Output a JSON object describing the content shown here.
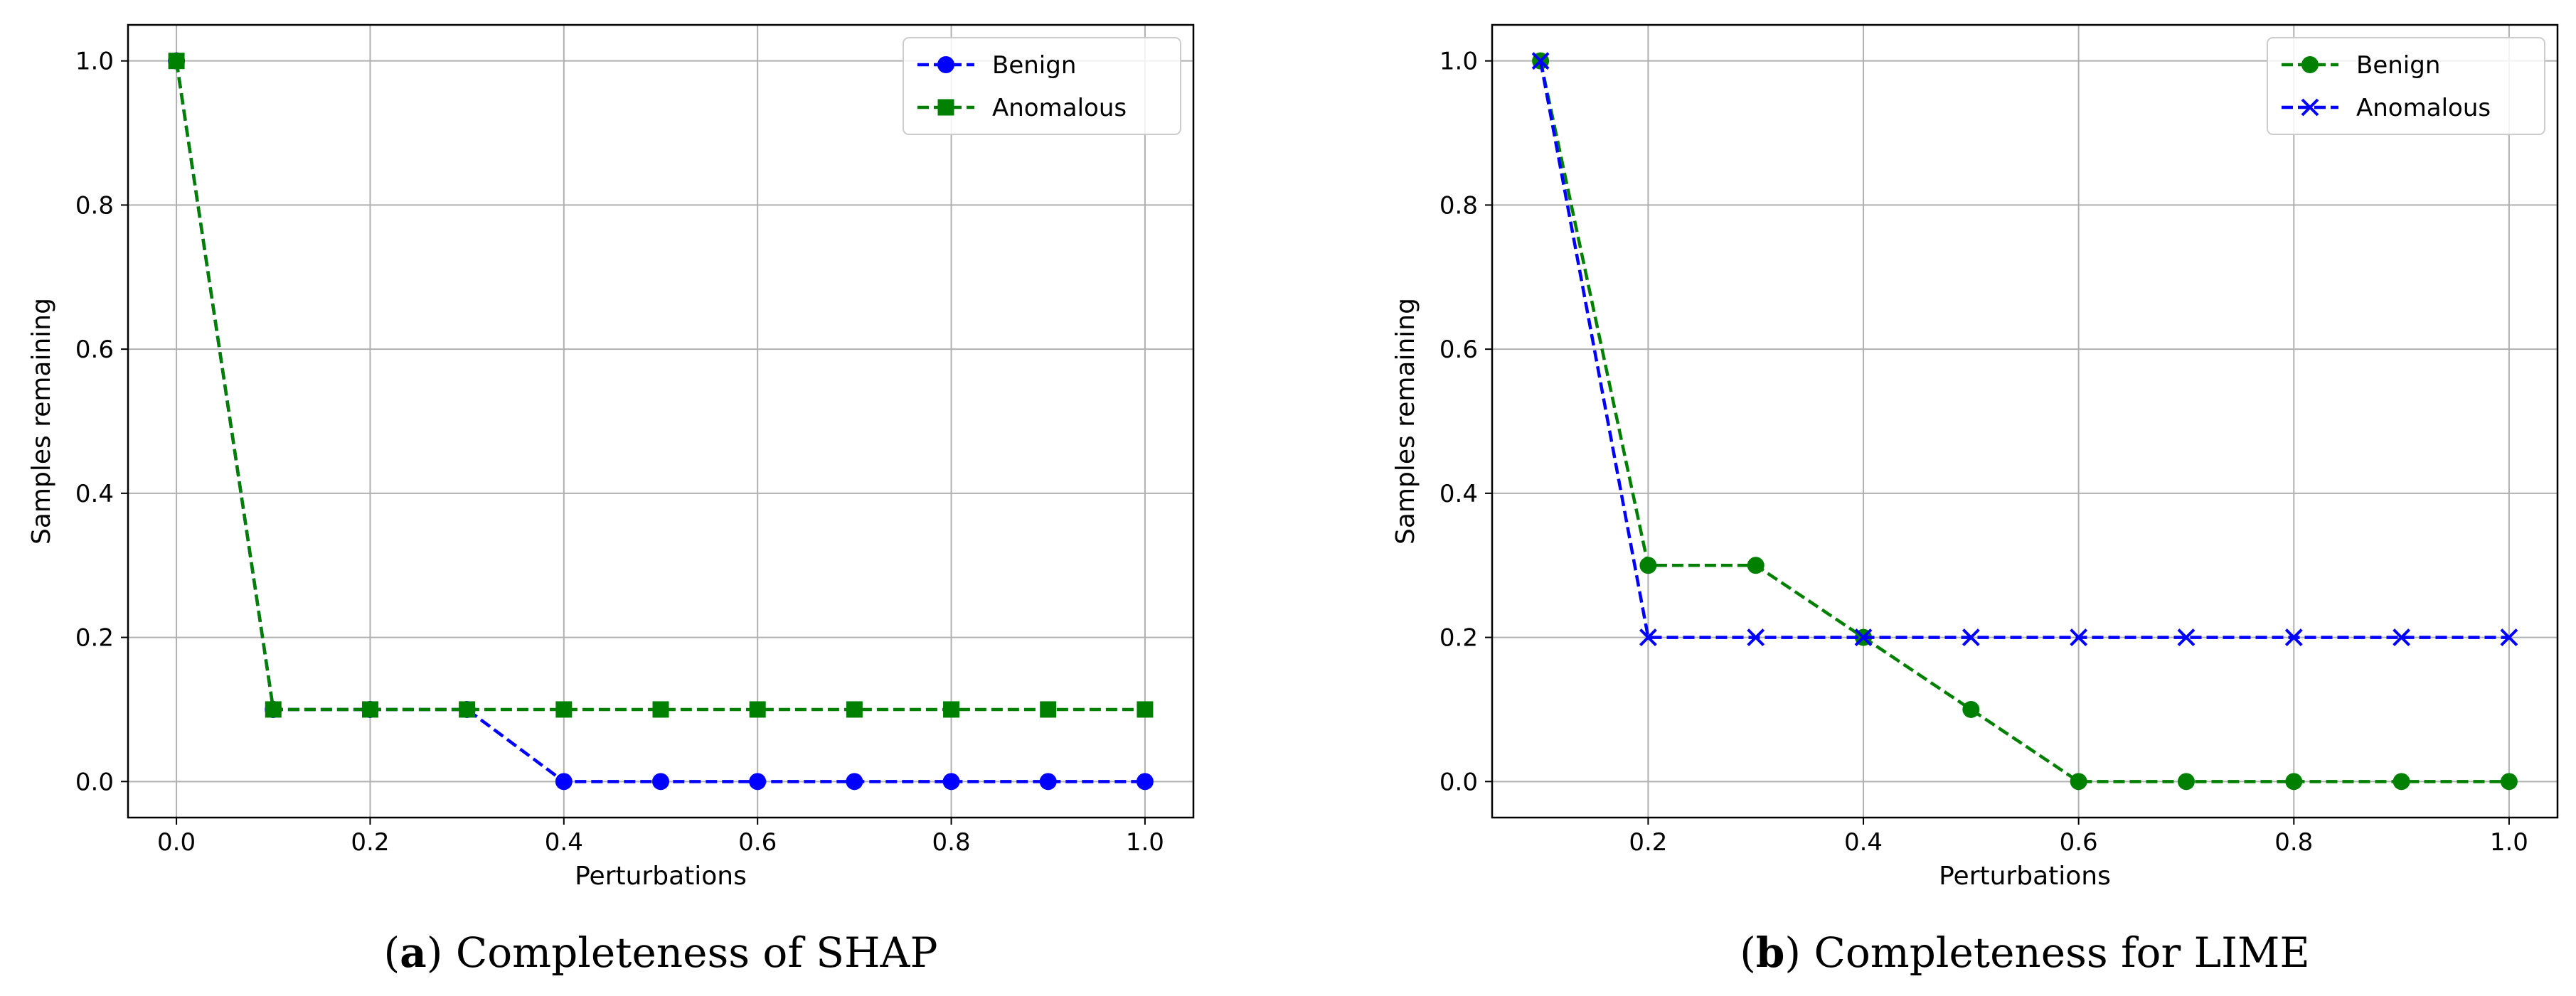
{
  "chart_data": [
    {
      "type": "line",
      "title": "",
      "xlabel": "Perturbations",
      "ylabel": "Samples remaining",
      "xlim": [
        -0.05,
        1.05
      ],
      "ylim": [
        -0.05,
        1.05
      ],
      "xticks": [
        0.0,
        0.2,
        0.4,
        0.6,
        0.8,
        1.0
      ],
      "yticks": [
        0.0,
        0.2,
        0.4,
        0.6,
        0.8,
        1.0
      ],
      "tick_labels_x": [
        "0.0",
        "0.2",
        "0.4",
        "0.6",
        "0.8",
        "1.0"
      ],
      "tick_labels_y": [
        "0.0",
        "0.2",
        "0.4",
        "0.6",
        "0.8",
        "1.0"
      ],
      "grid": true,
      "legend_position": "top-right",
      "caption_letter": "a",
      "caption_text": "Completeness of SHAP",
      "series": [
        {
          "name": "Benign",
          "color": "#0000ff",
          "marker": "circle",
          "x": [
            0.0,
            0.1,
            0.2,
            0.3,
            0.4,
            0.5,
            0.6,
            0.7,
            0.8,
            0.9,
            1.0
          ],
          "values": [
            1.0,
            0.1,
            0.1,
            0.1,
            0.0,
            0.0,
            0.0,
            0.0,
            0.0,
            0.0,
            0.0
          ]
        },
        {
          "name": "Anomalous",
          "color": "#008000",
          "marker": "square",
          "x": [
            0.0,
            0.1,
            0.2,
            0.3,
            0.4,
            0.5,
            0.6,
            0.7,
            0.8,
            0.9,
            1.0
          ],
          "values": [
            1.0,
            0.1,
            0.1,
            0.1,
            0.1,
            0.1,
            0.1,
            0.1,
            0.1,
            0.1,
            0.1
          ]
        }
      ]
    },
    {
      "type": "line",
      "title": "",
      "xlabel": "Perturbations",
      "ylabel": "Samples remaining",
      "xlim": [
        0.055,
        1.045
      ],
      "ylim": [
        -0.05,
        1.05
      ],
      "xticks": [
        0.2,
        0.4,
        0.6,
        0.8,
        1.0
      ],
      "yticks": [
        0.0,
        0.2,
        0.4,
        0.6,
        0.8,
        1.0
      ],
      "tick_labels_x": [
        "0.2",
        "0.4",
        "0.6",
        "0.8",
        "1.0"
      ],
      "tick_labels_y": [
        "0.0",
        "0.2",
        "0.4",
        "0.6",
        "0.8",
        "1.0"
      ],
      "grid": true,
      "legend_position": "top-right",
      "caption_letter": "b",
      "caption_text": "Completeness for LIME",
      "series": [
        {
          "name": "Benign",
          "color": "#008000",
          "marker": "circle",
          "x": [
            0.1,
            0.2,
            0.3,
            0.4,
            0.5,
            0.6,
            0.7,
            0.8,
            0.9,
            1.0
          ],
          "values": [
            1.0,
            0.3,
            0.3,
            0.2,
            0.1,
            0.0,
            0.0,
            0.0,
            0.0,
            0.0
          ]
        },
        {
          "name": "Anomalous",
          "color": "#0000ff",
          "marker": "x",
          "x": [
            0.1,
            0.2,
            0.3,
            0.4,
            0.5,
            0.6,
            0.7,
            0.8,
            0.9,
            1.0
          ],
          "values": [
            1.0,
            0.2,
            0.2,
            0.2,
            0.2,
            0.2,
            0.2,
            0.2,
            0.2,
            0.2
          ]
        }
      ]
    }
  ]
}
